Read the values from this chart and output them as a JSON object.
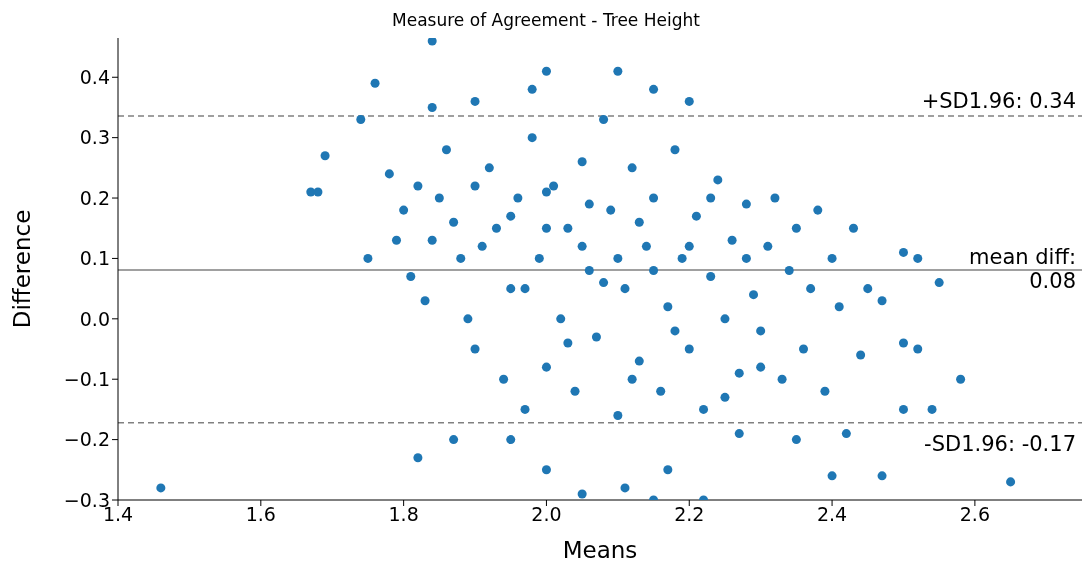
{
  "chart_data": {
    "type": "scatter",
    "title": "Measure of Agreement - Tree Height",
    "xlabel": "Means",
    "ylabel": "Difference",
    "xlim": [
      1.4,
      2.75
    ],
    "xticks": [
      1.4,
      1.6,
      1.8,
      {
        "value": 2,
        "label": "2.0"
      },
      2.2,
      2.4,
      2.6
    ],
    "ylim": [
      -0.3,
      0.465
    ],
    "yticks": [
      -0.3,
      -0.2,
      -0.1,
      {
        "value": 0,
        "label": "0.0"
      },
      0.1,
      0.2,
      0.3,
      0.4
    ],
    "grid": false,
    "marker": "circle",
    "ref_lines": [
      {
        "axis": "y",
        "value": 0.336,
        "label": "+SD1.96: 0.34",
        "color": "#808080",
        "line_style": "dashed"
      },
      {
        "axis": "y",
        "value": 0.081,
        "label": "mean diff:\n0.08",
        "color": "#808080",
        "line_style": "solid"
      },
      {
        "axis": "y",
        "value": -0.172,
        "label": "-SD1.96: -0.17",
        "color": "#808080",
        "line_style": "dashed"
      }
    ],
    "series": [
      {
        "color": "#1f77b4",
        "x": [
          1.46,
          1.69,
          1.67,
          1.68,
          1.74,
          1.76,
          1.75,
          1.84,
          1.82,
          1.87,
          1.84,
          2.0,
          2.1,
          2.15,
          2.2,
          1.9,
          1.98,
          2.43,
          2.5,
          2.52,
          2.55,
          2.58,
          2.65,
          2.54,
          2.47,
          2.4,
          2.5,
          2.42,
          2.35,
          2.27,
          2.22,
          2.15,
          2.05,
          2.0,
          1.95,
          2.11,
          2.17,
          2.5,
          2.52,
          2.47,
          2.45,
          2.4,
          1.78,
          1.8,
          1.79,
          1.81,
          1.83,
          1.85,
          1.86,
          1.88,
          1.89,
          1.9,
          1.92,
          1.93,
          1.94,
          1.95,
          1.96,
          1.97,
          1.98,
          1.99,
          2.0,
          2.01,
          2.02,
          2.03,
          2.04,
          2.05,
          2.06,
          2.07,
          2.08,
          2.09,
          2.1,
          2.11,
          2.12,
          2.13,
          2.14,
          2.15,
          2.16,
          2.17,
          2.18,
          2.19,
          2.2,
          2.21,
          2.22,
          2.23,
          2.24,
          2.25,
          2.26,
          2.27,
          2.28,
          2.29,
          2.3,
          2.31,
          2.32,
          2.33,
          2.34,
          2.35,
          2.36,
          2.37,
          2.38,
          2.39,
          2.41,
          2.44,
          1.87,
          1.91,
          1.95,
          2.0,
          2.05,
          2.1,
          2.15,
          2.2,
          1.97,
          2.03,
          2.08,
          2.13,
          2.18,
          2.23,
          2.28,
          1.84,
          1.82,
          1.9,
          2.0,
          2.06,
          2.12,
          2.25,
          2.3
        ],
        "values": [
          -0.28,
          0.27,
          0.21,
          0.21,
          0.33,
          0.39,
          0.1,
          0.46,
          -0.23,
          -0.2,
          0.35,
          0.41,
          0.41,
          0.38,
          0.36,
          0.36,
          0.38,
          0.15,
          0.11,
          0.1,
          0.06,
          -0.1,
          -0.27,
          -0.15,
          -0.26,
          -0.26,
          -0.15,
          -0.19,
          -0.2,
          -0.19,
          -0.3,
          -0.3,
          -0.29,
          -0.25,
          -0.2,
          -0.28,
          -0.25,
          -0.04,
          -0.05,
          0.03,
          0.05,
          0.1,
          0.24,
          0.18,
          0.13,
          0.07,
          0.03,
          0.2,
          0.28,
          0.1,
          0.0,
          -0.05,
          0.25,
          0.15,
          -0.1,
          0.05,
          0.2,
          -0.15,
          0.3,
          0.1,
          -0.08,
          0.22,
          0.0,
          0.15,
          -0.12,
          0.26,
          0.08,
          -0.03,
          0.33,
          0.18,
          -0.16,
          0.05,
          0.25,
          -0.07,
          0.12,
          0.2,
          -0.12,
          0.02,
          0.28,
          0.1,
          -0.05,
          0.17,
          -0.15,
          0.07,
          0.23,
          0.0,
          0.13,
          -0.09,
          0.19,
          0.04,
          -0.02,
          0.12,
          0.2,
          -0.1,
          0.08,
          0.15,
          -0.05,
          0.05,
          0.18,
          -0.12,
          0.02,
          -0.06,
          0.16,
          0.12,
          0.17,
          0.15,
          0.12,
          0.1,
          0.08,
          0.12,
          0.05,
          -0.04,
          0.06,
          0.16,
          -0.02,
          0.2,
          0.1,
          0.13,
          0.22,
          0.22,
          0.21,
          0.19,
          -0.1,
          -0.13,
          -0.08
        ]
      }
    ]
  }
}
